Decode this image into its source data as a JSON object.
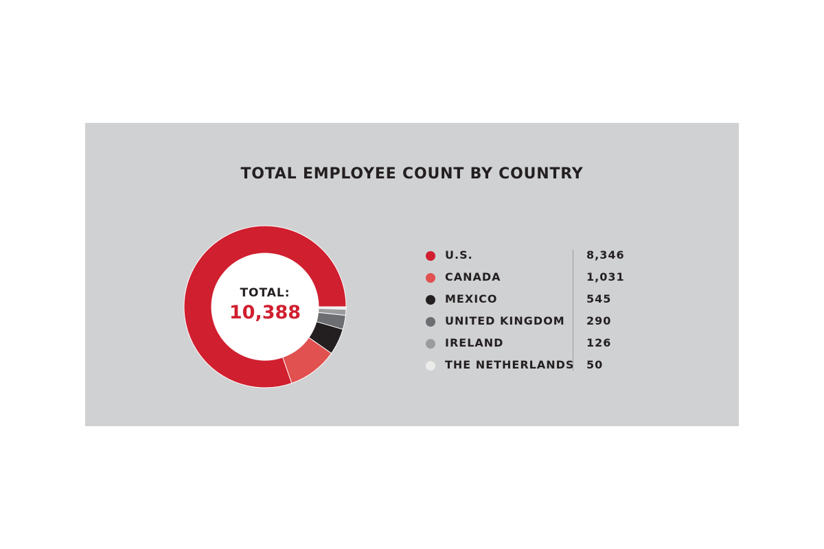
{
  "chart_data": {
    "type": "pie",
    "title": "TOTAL EMPLOYEE COUNT BY COUNTRY",
    "total_label": "TOTAL:",
    "total_value": "10,388",
    "categories": [
      "U.S.",
      "CANADA",
      "MEXICO",
      "UNITED KINGDOM",
      "IRELAND",
      "THE NETHERLANDS"
    ],
    "values": [
      8346,
      1031,
      545,
      290,
      126,
      50
    ],
    "value_labels": [
      "8,346",
      "1,031",
      "545",
      "290",
      "126",
      "50"
    ],
    "colors": [
      "#d01f2f",
      "#e0514f",
      "#231f20",
      "#6d6e71",
      "#9c9c9f",
      "#ebebe9"
    ],
    "legend_position": "right"
  }
}
